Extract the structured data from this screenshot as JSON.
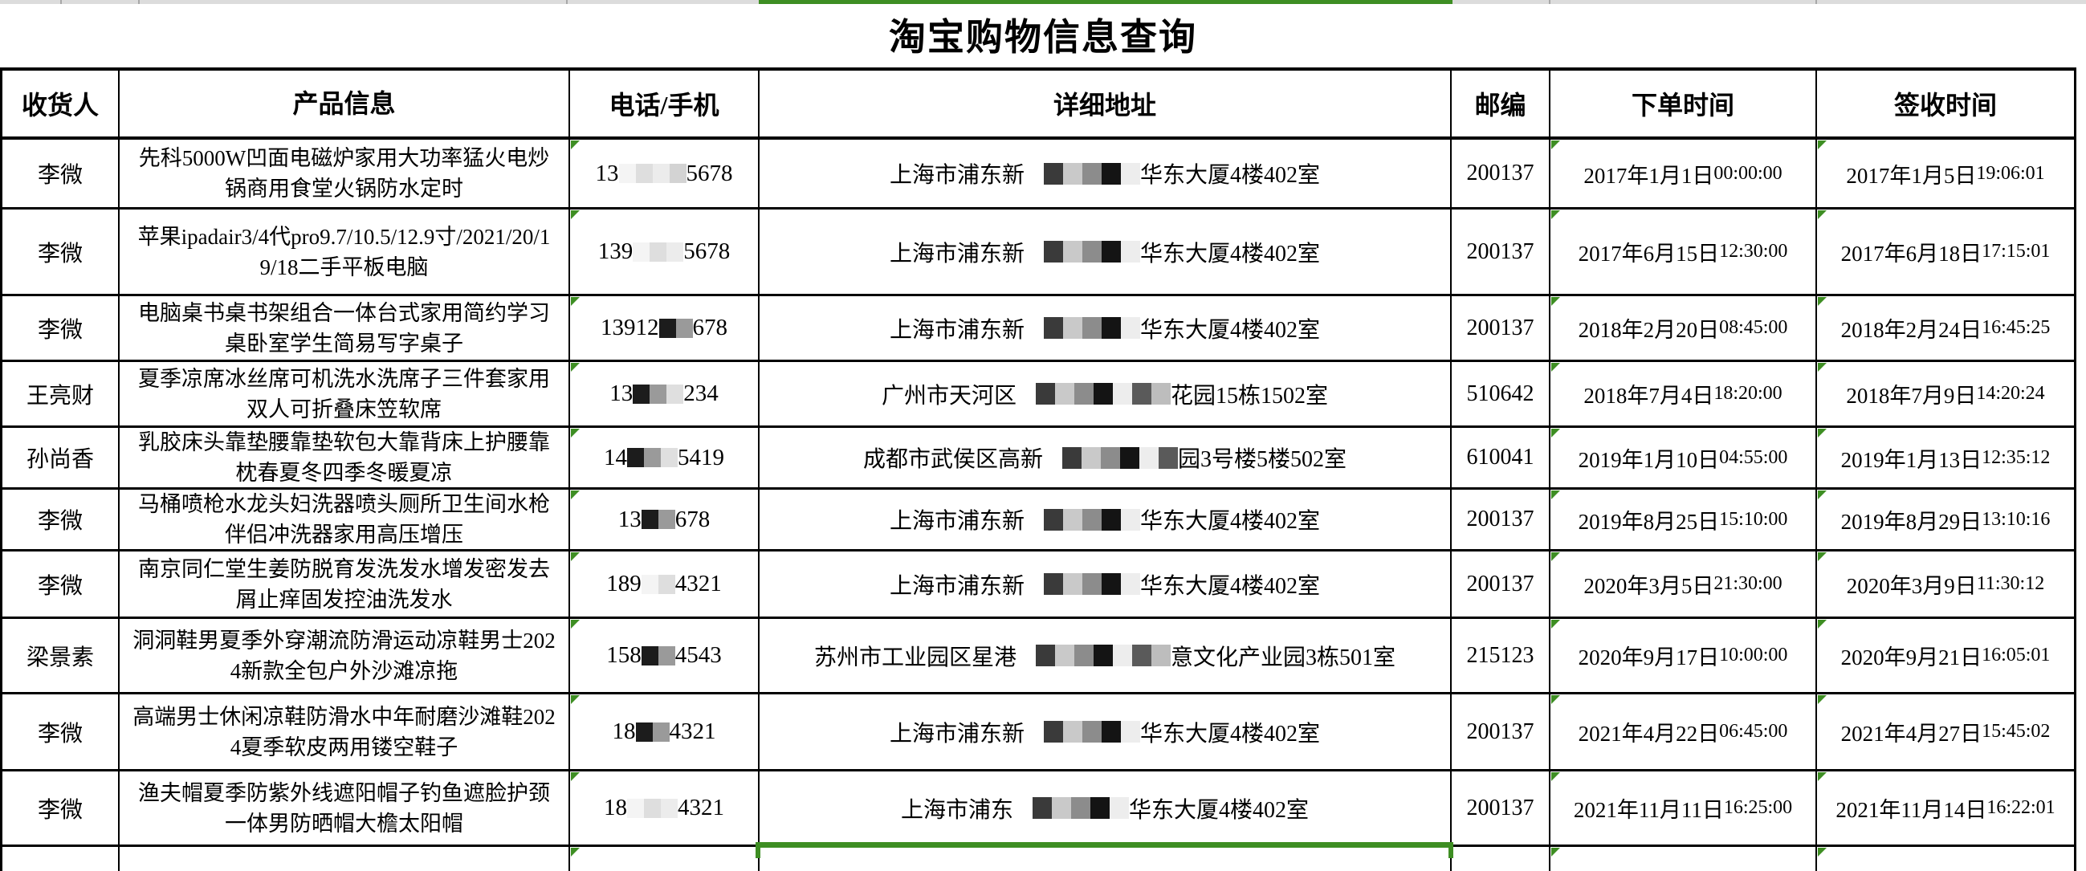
{
  "app": {
    "title": "淘宝购物信息查询"
  },
  "colors": {
    "accent_green": "#3e8e23",
    "strip_gray": "#dcdcdc",
    "grid_black": "#000000"
  },
  "sheet_strip": {
    "selected_column": "详细地址"
  },
  "table": {
    "columns": [
      {
        "key": "recipient",
        "label": "收货人"
      },
      {
        "key": "product",
        "label": "产品信息"
      },
      {
        "key": "phone",
        "label": "电话/手机"
      },
      {
        "key": "address",
        "label": "详细地址"
      },
      {
        "key": "zip",
        "label": "邮编"
      },
      {
        "key": "order-time",
        "label": "下单时间"
      },
      {
        "key": "sign-time",
        "label": "签收时间"
      }
    ],
    "rows": [
      {
        "recipient": "李微",
        "product": "先科5000W凹面电磁炉家用大功率猛火电炒锅商用食堂火锅防水定时",
        "phone": {
          "pre": "13",
          "mask_blocks": 4,
          "mask_style": "light",
          "suf": "5678"
        },
        "address": {
          "pre": "上海市浦东新",
          "mask_blocks": 6,
          "mask_style": "mixed",
          "suf": "华东大厦4楼402室"
        },
        "zip": "200137",
        "order_time": "2017年1月1日 00:00:00",
        "sign_time": "2017年1月5日 19:06:01"
      },
      {
        "recipient": "李微",
        "product": "苹果ipadair3/4代pro9.7/10.5/12.9寸/2021/20/19/18二手平板电脑",
        "phone": {
          "pre": "139",
          "mask_blocks": 3,
          "mask_style": "light",
          "suf": "5678"
        },
        "address": {
          "pre": "上海市浦东新",
          "mask_blocks": 6,
          "mask_style": "mixed",
          "suf": "华东大厦4楼402室"
        },
        "zip": "200137",
        "order_time": "2017年6月15日 12:30:00",
        "sign_time": "2017年6月18日 17:15:01"
      },
      {
        "recipient": "李微",
        "product": "电脑桌书桌书架组合一体台式家用简约学习桌卧室学生简易写字桌子",
        "phone": {
          "pre": "13912",
          "mask_blocks": 2,
          "mask_style": "dark",
          "suf": "678"
        },
        "address": {
          "pre": "上海市浦东新",
          "mask_blocks": 6,
          "mask_style": "mixed",
          "suf": "华东大厦4楼402室"
        },
        "zip": "200137",
        "order_time": "2018年2月20日 08:45:00",
        "sign_time": "2018年2月24日 16:45:25"
      },
      {
        "recipient": "王亮财",
        "product": "夏季凉席冰丝席可机洗水洗席子三件套家用双人可折叠床笠软席",
        "phone": {
          "pre": "13",
          "mask_blocks": 3,
          "mask_style": "dark",
          "suf": "234"
        },
        "address": {
          "pre": "广州市天河区",
          "mask_blocks": 8,
          "mask_style": "mixed",
          "suf": "花园15栋1502室"
        },
        "zip": "510642",
        "order_time": "2018年7月4日 18:20:00",
        "sign_time": "2018年7月9日 14:20:24"
      },
      {
        "recipient": "孙尚香",
        "product": "乳胶床头靠垫腰靠垫软包大靠背床上护腰靠枕春夏冬四季冬暖夏凉",
        "phone": {
          "pre": "14",
          "mask_blocks": 3,
          "mask_style": "dark",
          "suf": "5419"
        },
        "address": {
          "pre": "成都市武侯区高新",
          "mask_blocks": 7,
          "mask_style": "mixed",
          "suf": "园3号楼5楼502室"
        },
        "zip": "610041",
        "order_time": "2019年1月10日 04:55:00",
        "sign_time": "2019年1月13日 12:35:12"
      },
      {
        "recipient": "李微",
        "product": "马桶喷枪水龙头妇洗器喷头厕所卫生间水枪伴侣冲洗器家用高压增压",
        "phone": {
          "pre": "13",
          "mask_blocks": 2,
          "mask_style": "dark",
          "suf": "678"
        },
        "address": {
          "pre": "上海市浦东新",
          "mask_blocks": 6,
          "mask_style": "mixed",
          "suf": "华东大厦4楼402室"
        },
        "zip": "200137",
        "order_time": "2019年8月25日 15:10:00",
        "sign_time": "2019年8月29日 13:10:16"
      },
      {
        "recipient": "李微",
        "product": "南京同仁堂生姜防脱育发洗发水增发密发去屑止痒固发控油洗发水",
        "phone": {
          "pre": "189",
          "mask_blocks": 2,
          "mask_style": "light",
          "suf": "4321"
        },
        "address": {
          "pre": "上海市浦东新",
          "mask_blocks": 6,
          "mask_style": "mixed",
          "suf": "华东大厦4楼402室"
        },
        "zip": "200137",
        "order_time": "2020年3月5日 21:30:00",
        "sign_time": "2020年3月9日 11:30:12"
      },
      {
        "recipient": "梁景素",
        "product": "洞洞鞋男夏季外穿潮流防滑运动凉鞋男士2024新款全包户外沙滩凉拖",
        "phone": {
          "pre": "158",
          "mask_blocks": 2,
          "mask_style": "dark",
          "suf": "4543"
        },
        "address": {
          "pre": "苏州市工业园区星港",
          "mask_blocks": 8,
          "mask_style": "mixed",
          "suf": "意文化产业园3栋501室"
        },
        "zip": "215123",
        "order_time": "2020年9月17日 10:00:00",
        "sign_time": "2020年9月21日 16:05:01"
      },
      {
        "recipient": "李微",
        "product": "高端男士休闲凉鞋防滑水中年耐磨沙滩鞋2024夏季软皮两用镂空鞋子",
        "phone": {
          "pre": "18",
          "mask_blocks": 2,
          "mask_style": "dark",
          "suf": "4321"
        },
        "address": {
          "pre": "上海市浦东新",
          "mask_blocks": 6,
          "mask_style": "mixed",
          "suf": "华东大厦4楼402室"
        },
        "zip": "200137",
        "order_time": "2021年4月22日 06:45:00",
        "sign_time": "2021年4月27日 15:45:02"
      },
      {
        "recipient": "李微",
        "product": "渔夫帽夏季防紫外线遮阳帽子钓鱼遮脸护颈一体男防晒帽大檐太阳帽",
        "phone": {
          "pre": "18",
          "mask_blocks": 3,
          "mask_style": "light",
          "suf": "4321"
        },
        "address": {
          "pre": "上海市浦东",
          "mask_blocks": 6,
          "mask_style": "mixed",
          "suf": "华东大厦4楼402室"
        },
        "zip": "200137",
        "order_time": "2021年11月11日 16:25:00",
        "sign_time": "2021年11月14日 16:22:01"
      }
    ]
  }
}
